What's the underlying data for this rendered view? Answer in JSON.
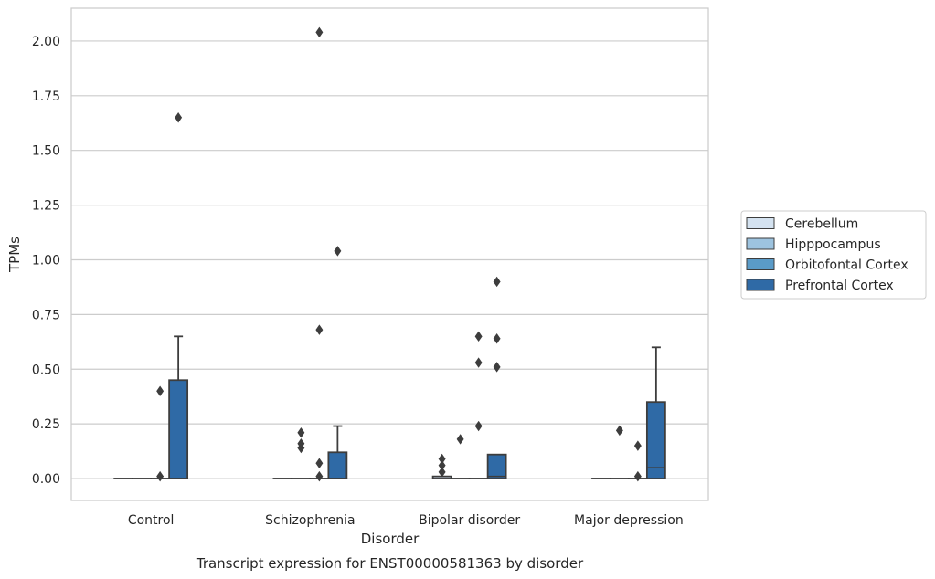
{
  "chart_data": {
    "type": "box",
    "xlabel": "Disorder",
    "ylabel": "TPMs",
    "caption": "Transcript expression for ENST00000581363 by disorder",
    "ylim": [
      -0.1,
      2.15
    ],
    "yticks": [
      "0.00",
      "0.25",
      "0.50",
      "0.75",
      "1.00",
      "1.25",
      "1.50",
      "1.75",
      "2.00"
    ],
    "ytick_values": [
      0,
      0.25,
      0.5,
      0.75,
      1.0,
      1.25,
      1.5,
      1.75,
      2.0
    ],
    "grid": "horizontal",
    "legend_position": "right",
    "categories": [
      "Control",
      "Schizophrenia",
      "Bipolar disorder",
      "Major depression"
    ],
    "series": [
      {
        "name": "Cerebellum",
        "color": "#d4e2f0",
        "boxes": [
          {
            "min": 0,
            "q1": 0,
            "median": 0,
            "q3": 0,
            "max": 0,
            "outliers": []
          },
          {
            "min": 0,
            "q1": 0,
            "median": 0,
            "q3": 0,
            "max": 0,
            "outliers": []
          },
          {
            "min": 0,
            "q1": 0,
            "median": 0,
            "q3": 0.01,
            "max": 0.01,
            "outliers": [
              0.03,
              0.06,
              0.09
            ]
          },
          {
            "min": 0,
            "q1": 0,
            "median": 0,
            "q3": 0,
            "max": 0,
            "outliers": []
          }
        ]
      },
      {
        "name": "Hipppocampus",
        "color": "#9dc3df",
        "boxes": [
          {
            "min": 0,
            "q1": 0,
            "median": 0,
            "q3": 0,
            "max": 0,
            "outliers": []
          },
          {
            "min": 0,
            "q1": 0,
            "median": 0,
            "q3": 0,
            "max": 0,
            "outliers": [
              0.14,
              0.16,
              0.21
            ]
          },
          {
            "min": 0,
            "q1": 0,
            "median": 0,
            "q3": 0,
            "max": 0,
            "outliers": [
              0.18
            ]
          },
          {
            "min": 0,
            "q1": 0,
            "median": 0,
            "q3": 0,
            "max": 0,
            "outliers": [
              0.22
            ]
          }
        ]
      },
      {
        "name": "Orbitofontal Cortex",
        "color": "#5a9bc8",
        "boxes": [
          {
            "min": 0,
            "q1": 0,
            "median": 0,
            "q3": 0,
            "max": 0,
            "outliers": [
              0.01,
              0.4
            ]
          },
          {
            "min": 0,
            "q1": 0,
            "median": 0,
            "q3": 0,
            "max": 0,
            "outliers": [
              0.01,
              0.07,
              0.68,
              2.04
            ]
          },
          {
            "min": 0,
            "q1": 0,
            "median": 0,
            "q3": 0,
            "max": 0,
            "outliers": [
              0.24,
              0.53,
              0.65
            ]
          },
          {
            "min": 0,
            "q1": 0,
            "median": 0,
            "q3": 0,
            "max": 0,
            "outliers": [
              0.01,
              0.15
            ]
          }
        ]
      },
      {
        "name": "Prefrontal Cortex",
        "color": "#2f6aa6",
        "boxes": [
          {
            "min": 0,
            "q1": 0,
            "median": 0,
            "q3": 0.45,
            "max": 0.65,
            "outliers": [
              1.65
            ]
          },
          {
            "min": 0,
            "q1": 0,
            "median": 0,
            "q3": 0.12,
            "max": 0.24,
            "outliers": [
              1.04
            ]
          },
          {
            "min": 0,
            "q1": 0,
            "median": 0.01,
            "q3": 0.11,
            "max": 0.11,
            "outliers": [
              0.51,
              0.64,
              0.9
            ]
          },
          {
            "min": 0,
            "q1": 0,
            "median": 0.05,
            "q3": 0.35,
            "max": 0.6,
            "outliers": []
          }
        ]
      }
    ]
  }
}
